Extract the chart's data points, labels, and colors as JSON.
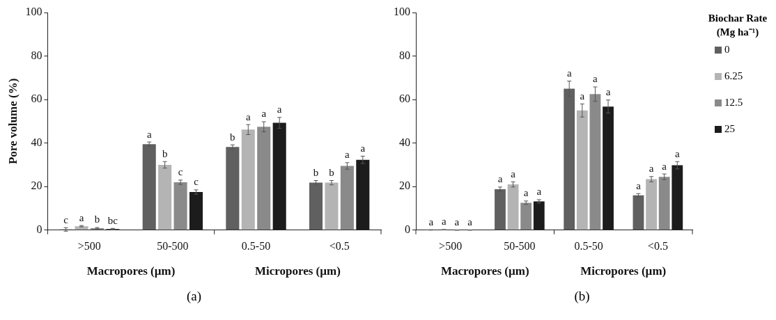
{
  "chart_data": [
    {
      "type": "bar",
      "ylabel": "Pore volume (%)",
      "categories": [
        ">500",
        "50-500",
        "0.5-50",
        "<0.5"
      ],
      "ylim": [
        0,
        100
      ],
      "yticks": [
        0,
        20,
        40,
        60,
        80,
        100
      ],
      "grid": false,
      "legend": false,
      "series": [
        {
          "color": "#606060",
          "values": [
            0.3,
            39.5,
            38.2,
            21.8
          ],
          "errors": [
            0.8,
            1,
            1,
            1
          ],
          "value_labels": [
            "c",
            "a",
            "b",
            "b"
          ]
        },
        {
          "color": "#b4b4b4",
          "values": [
            1.8,
            30,
            46.2,
            21.8
          ],
          "errors": [
            0.3,
            1.5,
            2.3,
            1
          ],
          "value_labels": [
            "a",
            "b",
            "a",
            "b"
          ]
        },
        {
          "color": "#8a8a8a",
          "values": [
            0.9,
            22,
            47.5,
            29.5
          ],
          "errors": [
            0.3,
            1,
            2.3,
            1.5
          ],
          "value_labels": [
            "b",
            "c",
            "a",
            "a"
          ]
        },
        {
          "color": "#1c1c1c",
          "values": [
            0.5,
            17.5,
            49.3,
            32.3
          ],
          "errors": [
            0.3,
            1,
            2.5,
            1.7
          ],
          "value_labels": [
            "bc",
            "c",
            "a",
            "a"
          ]
        }
      ],
      "annotations": [
        "Macropores (µm)",
        "Micropores (µm)",
        "(a)"
      ]
    },
    {
      "type": "bar",
      "categories": [
        ">500",
        "50-500",
        "0.5-50",
        "<0.5"
      ],
      "ylim": [
        0,
        100
      ],
      "yticks": [
        0,
        20,
        40,
        60,
        80,
        100
      ],
      "grid": false,
      "legend": "right",
      "legend_title": "Biochar Rate (Mg ha⁻¹)",
      "series": [
        {
          "name": "0",
          "color": "#606060",
          "values": [
            0.1,
            18.8,
            65,
            16
          ],
          "errors": [
            0.1,
            1,
            3.5,
            0.8
          ],
          "value_labels": [
            "a",
            "a",
            "a",
            "a"
          ]
        },
        {
          "name": "6.25",
          "color": "#b4b4b4",
          "values": [
            0.2,
            21,
            55,
            23.4
          ],
          "errors": [
            0.1,
            1.2,
            3,
            1.2
          ],
          "value_labels": [
            "a",
            "a",
            "a",
            "a"
          ]
        },
        {
          "name": "12.5",
          "color": "#8a8a8a",
          "values": [
            0,
            12.6,
            62.5,
            24.5
          ],
          "errors": [
            0,
            0.8,
            3.3,
            1.3
          ],
          "value_labels": [
            "a",
            "a",
            "a",
            "a"
          ]
        },
        {
          "name": "25",
          "color": "#1c1c1c",
          "values": [
            0,
            13.2,
            56.8,
            29.8
          ],
          "errors": [
            0,
            0.8,
            3,
            1.7
          ],
          "value_labels": [
            "a",
            "a",
            "a",
            "a"
          ]
        }
      ],
      "annotations": [
        "Macropores (µm)",
        "Micropores (µm)",
        "(b)"
      ]
    }
  ]
}
